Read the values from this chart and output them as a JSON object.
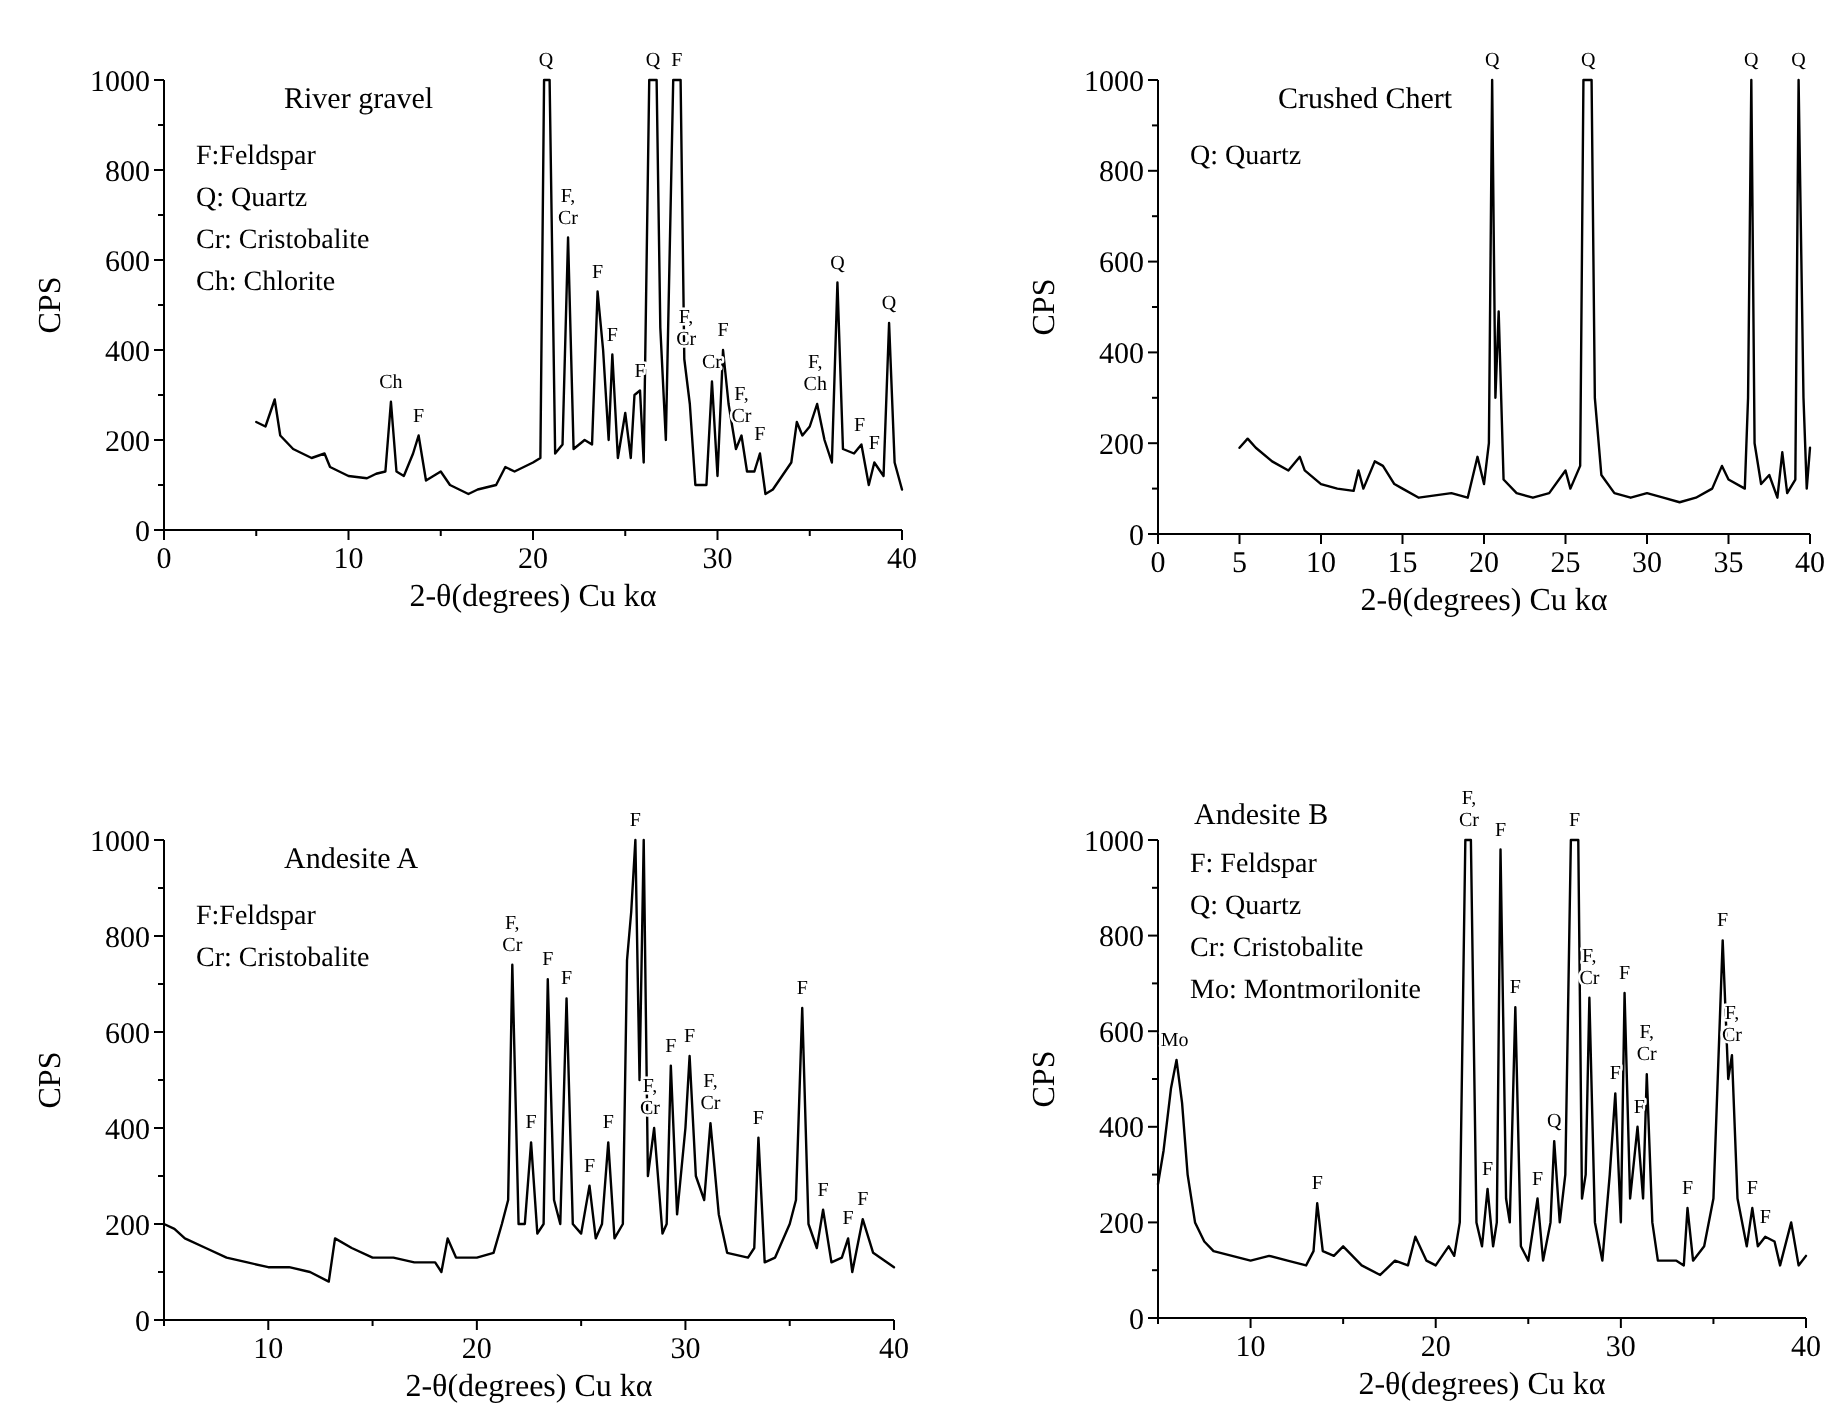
{
  "chart_data": [
    {
      "type": "line",
      "title": "River gravel",
      "xlabel": "2-θ(degrees) Cu kα",
      "ylabel": "CPS",
      "color": "#000000",
      "xlim": [
        0,
        40
      ],
      "xticks": [
        0,
        {
          "value": 5,
          "label": null
        },
        10,
        {
          "value": 15,
          "label": null
        },
        20,
        {
          "value": 25,
          "label": null
        },
        30,
        {
          "value": 35,
          "label": null
        },
        40
      ],
      "ylim": [
        0,
        1000
      ],
      "yticks": [
        0,
        {
          "value": 100,
          "label": null
        },
        200,
        {
          "value": 300,
          "label": null
        },
        400,
        {
          "value": 500,
          "label": null
        },
        600,
        {
          "value": 700,
          "label": null
        },
        800,
        {
          "value": 900,
          "label": null
        },
        1000
      ],
      "x": [
        5,
        5.5,
        6,
        6.3,
        7,
        8,
        8.7,
        9,
        10,
        11,
        11.5,
        12,
        12.3,
        12.6,
        13,
        13.5,
        13.8,
        14.2,
        15,
        15.5,
        16.5,
        17,
        18,
        18.5,
        19,
        20,
        20.4,
        20.6,
        20.9,
        21.2,
        21.6,
        21.9,
        22.2,
        22.8,
        23.2,
        23.5,
        23.8,
        24.1,
        24.3,
        24.6,
        25,
        25.3,
        25.5,
        25.8,
        26,
        26.3,
        26.5,
        26.7,
        26.9,
        27.2,
        27.6,
        28,
        28.2,
        28.5,
        28.8,
        29.4,
        29.7,
        30,
        30.3,
        30.6,
        31,
        31.3,
        31.6,
        32,
        32.3,
        32.6,
        33,
        34,
        34.3,
        34.6,
        35,
        35.4,
        35.8,
        36.2,
        36.5,
        36.8,
        37.4,
        37.8,
        38.2,
        38.5,
        39,
        39.3,
        39.6,
        40
      ],
      "values": [
        240,
        230,
        290,
        210,
        180,
        160,
        170,
        140,
        120,
        115,
        125,
        130,
        285,
        130,
        120,
        170,
        210,
        110,
        130,
        100,
        80,
        90,
        100,
        140,
        130,
        150,
        160,
        1000,
        1000,
        170,
        190,
        650,
        180,
        200,
        190,
        530,
        400,
        200,
        390,
        160,
        260,
        160,
        300,
        310,
        150,
        1000,
        1000,
        1000,
        450,
        200,
        1000,
        1000,
        380,
        280,
        100,
        100,
        330,
        120,
        400,
        280,
        180,
        210,
        130,
        130,
        170,
        80,
        90,
        150,
        240,
        210,
        230,
        280,
        200,
        150,
        550,
        180,
        170,
        190,
        100,
        150,
        120,
        460,
        150,
        90
      ],
      "annotations": [
        "F:Feldspar",
        "Q: Quartz",
        "Cr: Cristobalite",
        "Ch: Chlorite",
        {
          "text": "Ch",
          "x": 12.3,
          "y": 285
        },
        {
          "text": "F",
          "x": 13.8,
          "y": 210
        },
        {
          "text": "Q",
          "x": 20.7,
          "y": 1000
        },
        {
          "text": "F,\nCr",
          "x": 21.9,
          "y": 650
        },
        {
          "text": "F",
          "x": 23.5,
          "y": 530
        },
        {
          "text": "F",
          "x": 24.3,
          "y": 390
        },
        {
          "text": "F",
          "x": 25.8,
          "y": 310
        },
        {
          "text": "Q",
          "x": 26.5,
          "y": 1000
        },
        {
          "text": "F",
          "x": 27.8,
          "y": 1000
        },
        {
          "text": "F,\nCr",
          "x": 28.3,
          "y": 380
        },
        {
          "text": "Cr",
          "x": 29.7,
          "y": 330
        },
        {
          "text": "F",
          "x": 30.3,
          "y": 400
        },
        {
          "text": "F,\nCr",
          "x": 31.3,
          "y": 210
        },
        {
          "text": "F",
          "x": 32.3,
          "y": 170
        },
        {
          "text": "F,\nCh",
          "x": 35.3,
          "y": 280
        },
        {
          "text": "Q",
          "x": 36.5,
          "y": 550
        },
        {
          "text": "F",
          "x": 37.7,
          "y": 190
        },
        {
          "text": "F",
          "x": 38.5,
          "y": 150
        },
        {
          "text": "Q",
          "x": 39.3,
          "y": 460
        }
      ]
    },
    {
      "type": "line",
      "title": "Crushed Chert",
      "xlabel": "2-θ(degrees) Cu kα",
      "ylabel": "CPS",
      "color": "#000000",
      "xlim": [
        0,
        40
      ],
      "xticks": [
        0,
        5,
        10,
        15,
        20,
        25,
        30,
        35,
        40
      ],
      "ylim": [
        0,
        1000
      ],
      "yticks": [
        0,
        {
          "value": 100,
          "label": null
        },
        200,
        {
          "value": 300,
          "label": null
        },
        400,
        {
          "value": 500,
          "label": null
        },
        600,
        {
          "value": 700,
          "label": null
        },
        800,
        {
          "value": 900,
          "label": null
        },
        1000
      ],
      "x": [
        5,
        5.5,
        6,
        7,
        8,
        8.7,
        9,
        10,
        11,
        12,
        12.3,
        12.6,
        13.3,
        13.8,
        14.5,
        15,
        16,
        17,
        18,
        19,
        19.6,
        20,
        20.3,
        20.5,
        20.7,
        20.9,
        21.2,
        22,
        23,
        24,
        25,
        25.3,
        25.9,
        26.1,
        26.6,
        26.8,
        27.2,
        28,
        29,
        30,
        31,
        32,
        33,
        34,
        34.6,
        35,
        36,
        36.2,
        36.4,
        36.6,
        37,
        37.5,
        38,
        38.3,
        38.6,
        39.1,
        39.3,
        39.6,
        39.8,
        40
      ],
      "values": [
        190,
        210,
        190,
        160,
        140,
        170,
        140,
        110,
        100,
        95,
        140,
        100,
        160,
        150,
        110,
        100,
        80,
        85,
        90,
        80,
        170,
        110,
        200,
        1000,
        300,
        490,
        120,
        90,
        80,
        90,
        140,
        100,
        150,
        1000,
        1000,
        300,
        130,
        90,
        80,
        90,
        80,
        70,
        80,
        100,
        150,
        120,
        100,
        300,
        1000,
        200,
        110,
        130,
        80,
        180,
        90,
        120,
        1000,
        300,
        100,
        190
      ],
      "annotations": [
        "Q: Quartz",
        {
          "text": "Q",
          "x": 20.5,
          "y": 1000
        },
        {
          "text": "Q",
          "x": 26.4,
          "y": 1000
        },
        {
          "text": "Q",
          "x": 36.4,
          "y": 1000
        },
        {
          "text": "Q",
          "x": 39.3,
          "y": 1000
        }
      ]
    },
    {
      "type": "line",
      "title": "Andesite A",
      "xlabel": "2-θ(degrees) Cu kα",
      "ylabel": "CPS",
      "color": "#000000",
      "xlim": [
        5,
        40
      ],
      "xticks": [
        {
          "value": 5,
          "label": null
        },
        10,
        {
          "value": 15,
          "label": null
        },
        20,
        {
          "value": 25,
          "label": null
        },
        30,
        {
          "value": 35,
          "label": null
        },
        40
      ],
      "ylim": [
        0,
        1000
      ],
      "yticks": [
        0,
        {
          "value": 100,
          "label": null
        },
        200,
        {
          "value": 300,
          "label": null
        },
        400,
        {
          "value": 500,
          "label": null
        },
        600,
        {
          "value": 700,
          "label": null
        },
        800,
        {
          "value": 900,
          "label": null
        },
        1000
      ],
      "x": [
        5,
        5.5,
        6,
        7,
        8,
        9,
        10,
        11,
        12,
        12.9,
        13.2,
        14,
        15,
        16,
        17,
        18,
        18.3,
        18.6,
        19,
        20,
        20.8,
        21.2,
        21.5,
        21.7,
        22,
        22.3,
        22.6,
        22.9,
        23.2,
        23.4,
        23.7,
        24,
        24.3,
        24.6,
        25,
        25.4,
        25.7,
        26,
        26.3,
        26.6,
        27,
        27.2,
        27.4,
        27.6,
        27.8,
        28,
        28.2,
        28.5,
        28.9,
        29.1,
        29.3,
        29.6,
        30,
        30.2,
        30.5,
        30.9,
        31.2,
        31.6,
        32,
        33,
        33.3,
        33.5,
        33.8,
        34.3,
        35,
        35.3,
        35.6,
        35.9,
        36.3,
        36.6,
        37,
        37.5,
        37.8,
        38,
        38.5,
        39,
        40
      ],
      "values": [
        200,
        190,
        170,
        150,
        130,
        120,
        110,
        110,
        100,
        80,
        170,
        150,
        130,
        130,
        120,
        120,
        100,
        170,
        130,
        130,
        140,
        200,
        250,
        740,
        200,
        200,
        370,
        180,
        200,
        710,
        250,
        200,
        670,
        200,
        180,
        280,
        170,
        200,
        370,
        170,
        200,
        750,
        850,
        1000,
        500,
        1000,
        300,
        400,
        180,
        200,
        530,
        220,
        400,
        550,
        300,
        250,
        410,
        220,
        140,
        130,
        150,
        380,
        120,
        130,
        200,
        250,
        650,
        200,
        150,
        230,
        120,
        130,
        170,
        100,
        210,
        140,
        110
      ],
      "annotations": [
        "F:Feldspar",
        "Cr: Cristobalite",
        {
          "text": "F,\nCr",
          "x": 21.7,
          "y": 740
        },
        {
          "text": "F",
          "x": 22.6,
          "y": 370
        },
        {
          "text": "F",
          "x": 23.4,
          "y": 710
        },
        {
          "text": "F",
          "x": 24.3,
          "y": 670
        },
        {
          "text": "F",
          "x": 25.4,
          "y": 280
        },
        {
          "text": "F",
          "x": 26.3,
          "y": 370
        },
        {
          "text": "F",
          "x": 27.6,
          "y": 1000
        },
        {
          "text": "F,\nCr",
          "x": 28.3,
          "y": 400
        },
        {
          "text": "F",
          "x": 29.3,
          "y": 530
        },
        {
          "text": "F",
          "x": 30.2,
          "y": 550
        },
        {
          "text": "F,\nCr",
          "x": 31.2,
          "y": 410
        },
        {
          "text": "F",
          "x": 33.5,
          "y": 380
        },
        {
          "text": "F",
          "x": 35.6,
          "y": 650
        },
        {
          "text": "F",
          "x": 36.6,
          "y": 230
        },
        {
          "text": "F",
          "x": 37.8,
          "y": 170
        },
        {
          "text": "F",
          "x": 38.5,
          "y": 210
        }
      ]
    },
    {
      "type": "line",
      "title": "Andesite B",
      "xlabel": "2-θ(degrees) Cu kα",
      "ylabel": "CPS",
      "color": "#000000",
      "xlim": [
        5,
        40
      ],
      "xticks": [
        {
          "value": 5,
          "label": null
        },
        10,
        {
          "value": 15,
          "label": null
        },
        20,
        {
          "value": 25,
          "label": null
        },
        30,
        {
          "value": 35,
          "label": null
        },
        40
      ],
      "ylim": [
        0,
        1000
      ],
      "yticks": [
        0,
        {
          "value": 100,
          "label": null
        },
        200,
        {
          "value": 300,
          "label": null
        },
        400,
        {
          "value": 500,
          "label": null
        },
        600,
        {
          "value": 700,
          "label": null
        },
        800,
        {
          "value": 900,
          "label": null
        },
        1000
      ],
      "x": [
        5,
        5.3,
        5.7,
        6,
        6.3,
        6.6,
        7,
        7.5,
        8,
        9,
        10,
        11,
        12,
        13,
        13.4,
        13.6,
        13.9,
        14.5,
        15,
        16,
        17,
        17.8,
        18.5,
        18.9,
        19.5,
        20,
        20.7,
        21,
        21.3,
        21.6,
        21.9,
        22.2,
        22.5,
        22.8,
        23.1,
        23.3,
        23.5,
        23.8,
        24,
        24.3,
        24.6,
        25,
        25.5,
        25.8,
        26.2,
        26.4,
        26.7,
        27,
        27.3,
        27.7,
        27.9,
        28.1,
        28.3,
        28.6,
        29,
        29.4,
        29.7,
        30,
        30.2,
        30.5,
        30.9,
        31.2,
        31.4,
        31.7,
        32,
        33,
        33.4,
        33.6,
        33.9,
        34.5,
        35,
        35.5,
        35.8,
        36,
        36.3,
        36.8,
        37.1,
        37.4,
        37.8,
        38.3,
        38.6,
        39.2,
        39.6,
        40
      ],
      "values": [
        280,
        350,
        480,
        540,
        450,
        300,
        200,
        160,
        140,
        130,
        120,
        130,
        120,
        110,
        140,
        240,
        140,
        130,
        150,
        110,
        90,
        120,
        110,
        170,
        120,
        110,
        150,
        130,
        200,
        1000,
        1000,
        200,
        150,
        270,
        150,
        200,
        980,
        250,
        200,
        650,
        150,
        120,
        250,
        120,
        200,
        370,
        200,
        300,
        1000,
        1000,
        250,
        300,
        670,
        200,
        120,
        300,
        470,
        200,
        680,
        250,
        400,
        250,
        510,
        200,
        120,
        120,
        110,
        230,
        120,
        150,
        250,
        790,
        500,
        550,
        250,
        150,
        230,
        150,
        170,
        160,
        110,
        200,
        110,
        130
      ],
      "annotations": [
        "F: Feldspar",
        "Q: Quartz",
        "Cr: Cristobalite",
        "Mo: Montmorilonite",
        {
          "text": "Mo",
          "x": 5.9,
          "y": 540
        },
        {
          "text": "F",
          "x": 13.6,
          "y": 240
        },
        {
          "text": "F,\nCr",
          "x": 21.8,
          "y": 1000
        },
        {
          "text": "F",
          "x": 22.8,
          "y": 270
        },
        {
          "text": "F",
          "x": 23.5,
          "y": 980
        },
        {
          "text": "F",
          "x": 24.3,
          "y": 650
        },
        {
          "text": "F",
          "x": 25.5,
          "y": 250
        },
        {
          "text": "Q",
          "x": 26.4,
          "y": 370
        },
        {
          "text": "F",
          "x": 27.5,
          "y": 1000
        },
        {
          "text": "F,\nCr",
          "x": 28.3,
          "y": 670
        },
        {
          "text": "F",
          "x": 29.7,
          "y": 470
        },
        {
          "text": "F",
          "x": 30.2,
          "y": 680
        },
        {
          "text": "F",
          "x": 31.0,
          "y": 400
        },
        {
          "text": "F,\nCr",
          "x": 31.4,
          "y": 510
        },
        {
          "text": "F",
          "x": 33.6,
          "y": 230
        },
        {
          "text": "F",
          "x": 35.5,
          "y": 790
        },
        {
          "text": "F,\nCr",
          "x": 36.0,
          "y": 550
        },
        {
          "text": "F",
          "x": 37.1,
          "y": 230
        },
        {
          "text": "F",
          "x": 37.8,
          "y": 170
        }
      ]
    }
  ]
}
